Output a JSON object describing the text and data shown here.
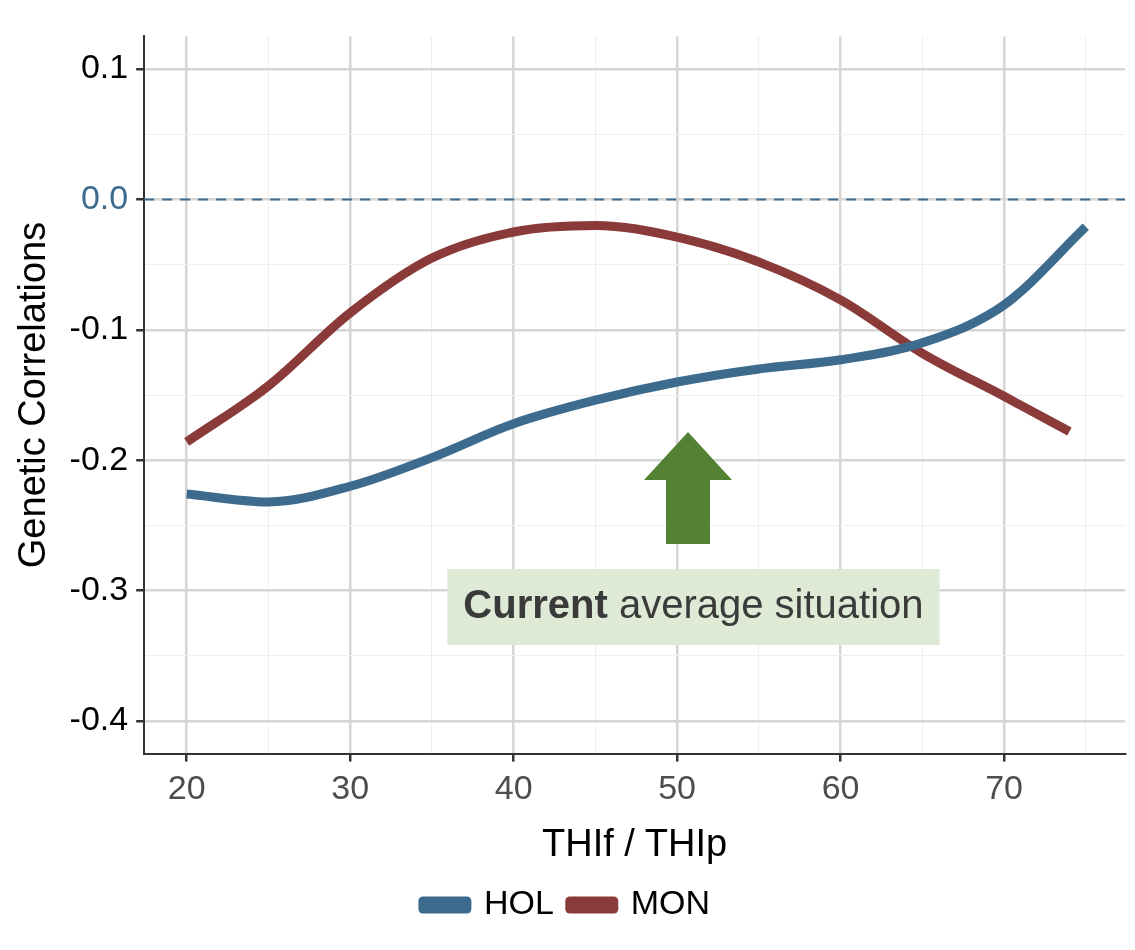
{
  "chart_data": {
    "type": "line",
    "xlabel": "THIf / THIp",
    "ylabel": "Genetic Correlations",
    "xlim": [
      17.4,
      77.4
    ],
    "ylim": [
      -0.425,
      0.125
    ],
    "xticks": [
      20,
      {
        "value": 25,
        "label": null
      },
      30,
      {
        "value": 35,
        "label": null
      },
      40,
      {
        "value": 45,
        "label": null
      },
      50,
      {
        "value": 55,
        "label": null
      },
      60,
      {
        "value": 65,
        "label": null
      },
      70,
      {
        "value": 75,
        "label": null
      }
    ],
    "yticks": [
      -0.4,
      {
        "value": -0.35,
        "label": null
      },
      -0.3,
      {
        "value": -0.25,
        "label": null
      },
      -0.2,
      {
        "value": -0.15,
        "label": null
      },
      -0.1,
      {
        "value": -0.05,
        "label": null
      },
      {
        "value": 0,
        "label": "0.0"
      },
      {
        "value": 0.05,
        "label": null
      },
      0.1
    ],
    "x": [
      20,
      25,
      30,
      35,
      40,
      45,
      50,
      55,
      60,
      65,
      70,
      75
    ],
    "series": [
      {
        "name": "HOL",
        "color": "#3d6b8e",
        "values": [
          -0.226,
          -0.232,
          -0.22,
          -0.198,
          -0.172,
          -0.154,
          -0.14,
          -0.13,
          -0.123,
          -0.11,
          -0.081,
          -0.021
        ]
      },
      {
        "name": "MON",
        "color": "#8b3a3a",
        "x": [
          20,
          25,
          30,
          35,
          40,
          45,
          50,
          55,
          60,
          65,
          70,
          74
        ],
        "values": [
          -0.186,
          -0.143,
          -0.087,
          -0.045,
          -0.025,
          -0.02,
          -0.029,
          -0.048,
          -0.077,
          -0.118,
          -0.151,
          -0.178
        ]
      }
    ],
    "ref_lines": [
      {
        "axis": "y",
        "value": 0,
        "color": "#3d6b8e",
        "line_style": "dashed"
      }
    ],
    "annotations": [
      "Current average situation"
    ],
    "grid": true,
    "legend": "bottom",
    "marker": "none",
    "line_style": "solid"
  }
}
